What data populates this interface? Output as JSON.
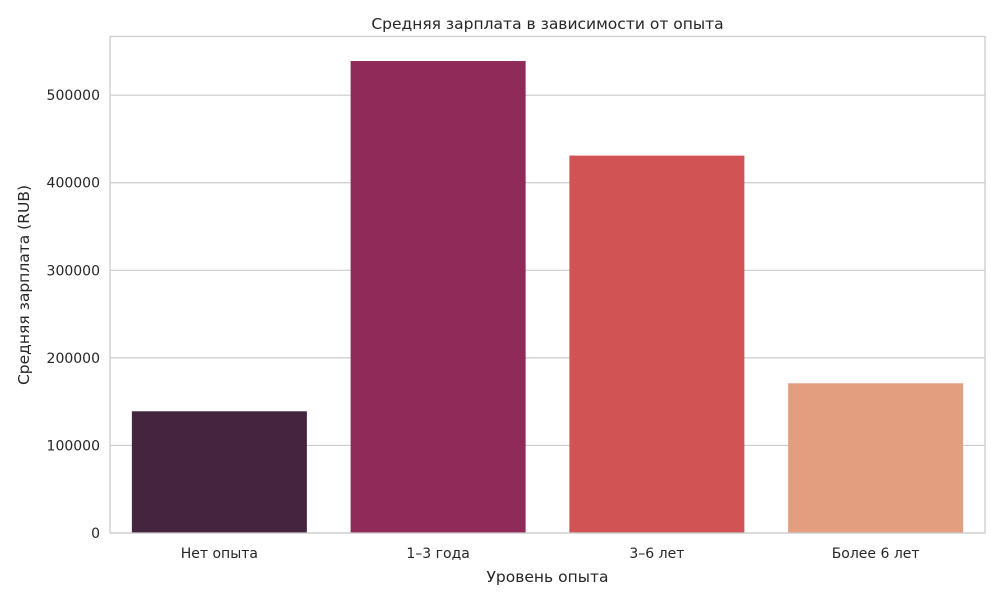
{
  "chart_data": {
    "type": "bar",
    "title": "Средняя зарплата в зависимости от опыта",
    "xlabel": "Уровень опыта",
    "ylabel": "Средняя зарплата (RUB)",
    "categories": [
      "Нет опыта",
      "1–3 года",
      "3–6 лет",
      "Более 6 лет"
    ],
    "values": [
      139000,
      539000,
      431000,
      171000
    ],
    "colors": [
      "#45243f",
      "#8f2a59",
      "#d15354",
      "#e39e7f"
    ],
    "ylim": [
      0,
      567000
    ],
    "yticks": [
      0,
      100000,
      200000,
      300000,
      400000,
      500000
    ],
    "ytick_labels": [
      "0",
      "100000",
      "200000",
      "300000",
      "400000",
      "500000"
    ],
    "grid": true,
    "legend": "none"
  }
}
